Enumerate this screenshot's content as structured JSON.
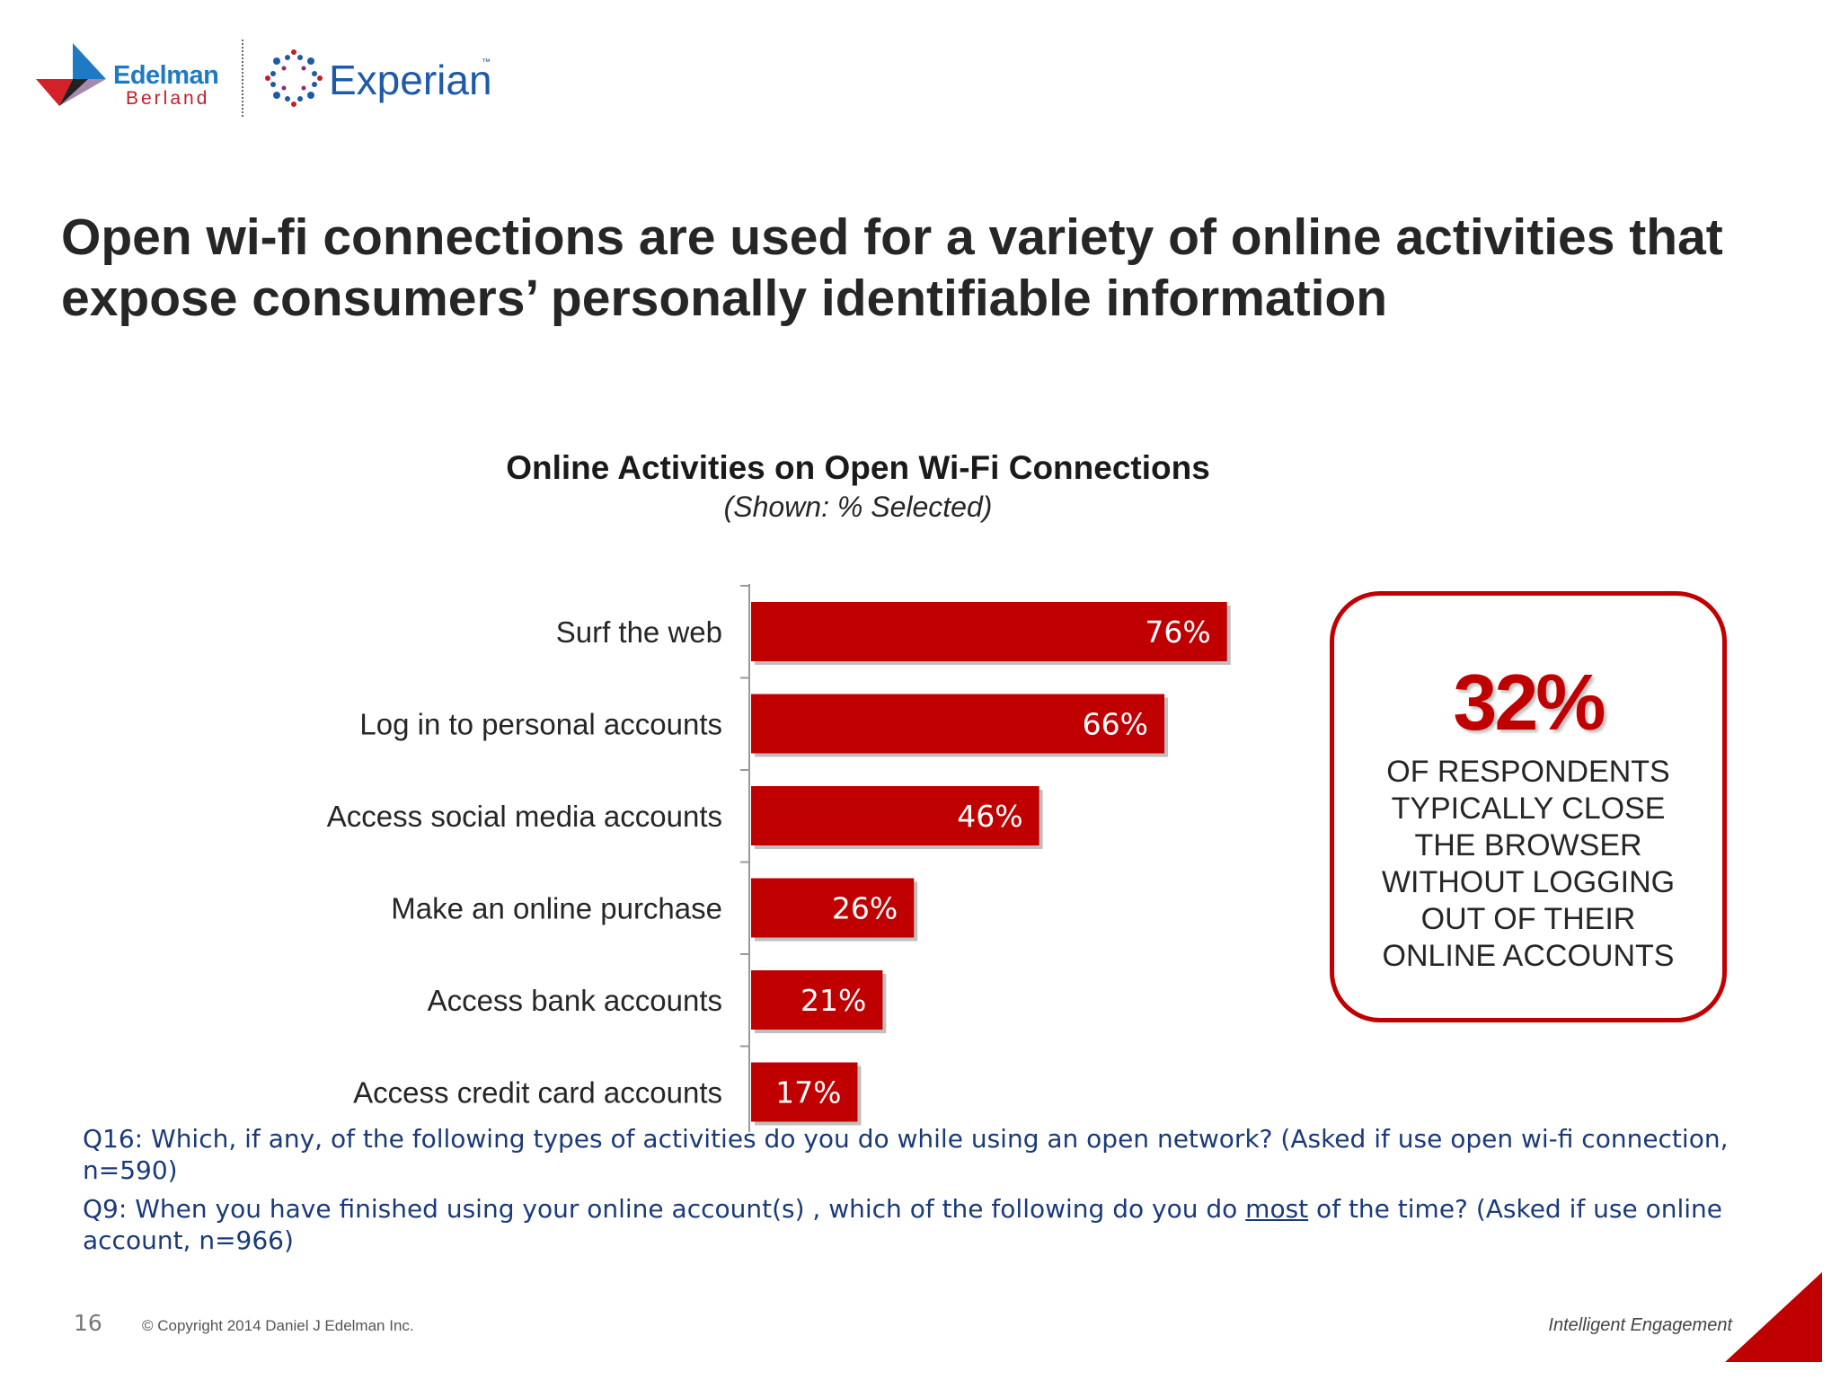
{
  "logos": {
    "edelman": {
      "name": "Edelman",
      "sub": "Berland"
    },
    "experian": {
      "name": "Experian",
      "tm": "™"
    }
  },
  "title": "Open wi-fi connections are used for a variety of online activities that expose consumers’ personally identifiable information",
  "chart_data": {
    "type": "bar",
    "orientation": "horizontal",
    "title": "Online Activities on Open Wi-Fi Connections",
    "subtitle": "(Shown: % Selected)",
    "categories": [
      "Surf the web",
      "Log in to personal accounts",
      "Access social media accounts",
      "Make an online purchase",
      "Access bank accounts",
      "Access credit card accounts"
    ],
    "values": [
      76,
      66,
      46,
      26,
      21,
      17
    ],
    "value_labels": [
      "76%",
      "66%",
      "46%",
      "26%",
      "21%",
      "17%"
    ],
    "xlim": [
      0,
      100
    ],
    "grid": false,
    "legend": "none",
    "bar_color": "#c00000"
  },
  "callout": {
    "stat": "32%",
    "text": "OF RESPONDENTS TYPICALLY CLOSE THE BROWSER WITHOUT LOGGING OUT OF THEIR ONLINE ACCOUNTS",
    "border_color": "#c00000"
  },
  "notes": {
    "q16": "Q16: Which, if any, of the following types of activities do you do while using an open network? (Asked if use open wi-fi connection, n=590)",
    "q9_before": "Q9:  When you have finished using your online account(s) , which of the following do you do ",
    "q9_emphasis": "most",
    "q9_after": " of the time? (Asked if use online account, n=966)"
  },
  "footer": {
    "page_number": "16",
    "copyright": "© Copyright 2014 Daniel J Edelman Inc.",
    "tagline": "Intelligent Engagement"
  },
  "colors": {
    "accent": "#c00000",
    "edelman_blue": "#1f7ac4",
    "experian_blue": "#1e5aa8",
    "note_text": "#1a3a7a"
  },
  "icons": [
    "edelman-logo-icon",
    "experian-logo-icon",
    "corner-triangle-icon"
  ]
}
